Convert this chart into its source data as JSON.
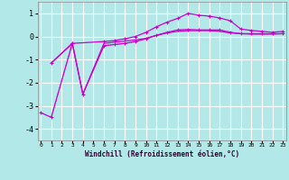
{
  "xlabel": "Windchill (Refroidissement éolien,°C)",
  "bg_color": "#b3e8e8",
  "grid_color": "#ffffff",
  "line_color": "#cc00cc",
  "x_ticks": [
    0,
    1,
    2,
    3,
    4,
    5,
    6,
    7,
    8,
    9,
    10,
    11,
    12,
    13,
    14,
    15,
    16,
    17,
    18,
    19,
    20,
    21,
    22,
    23
  ],
  "y_ticks": [
    -4,
    -3,
    -2,
    -1,
    0,
    1
  ],
  "xlim": [
    -0.3,
    23.3
  ],
  "ylim": [
    -4.5,
    1.5
  ],
  "series_dotted": {
    "x": [
      0,
      1,
      3,
      4,
      6,
      7,
      8,
      9,
      10,
      11,
      12,
      13,
      14,
      15,
      16,
      17,
      18,
      19,
      20,
      21,
      22,
      23
    ],
    "y": [
      -3.3,
      -3.5,
      -0.3,
      -2.5,
      -0.4,
      -0.35,
      -0.3,
      -0.22,
      -0.1,
      0.05,
      0.18,
      0.28,
      0.3,
      0.28,
      0.28,
      0.28,
      0.18,
      0.12,
      0.12,
      0.12,
      0.12,
      0.12
    ]
  },
  "series_main": {
    "x": [
      0,
      1,
      3,
      4,
      6,
      7,
      8,
      9,
      10,
      11,
      12,
      13,
      14,
      15,
      16,
      17,
      18,
      19,
      20,
      21,
      22,
      23
    ],
    "y": [
      -3.3,
      -3.5,
      -0.3,
      -2.5,
      -0.4,
      -0.35,
      -0.3,
      -0.22,
      -0.1,
      0.05,
      0.18,
      0.28,
      0.3,
      0.28,
      0.28,
      0.28,
      0.18,
      0.12,
      0.12,
      0.12,
      0.12,
      0.12
    ]
  },
  "series_arc": {
    "x": [
      1,
      3,
      6,
      7,
      8,
      9,
      10,
      11,
      12,
      13,
      14,
      15,
      16,
      17,
      18,
      19,
      20,
      21,
      22,
      23
    ],
    "y": [
      -1.15,
      -0.3,
      -0.22,
      -0.18,
      -0.1,
      0.0,
      0.18,
      0.42,
      0.62,
      0.78,
      1.0,
      0.92,
      0.88,
      0.8,
      0.68,
      0.32,
      0.26,
      0.22,
      0.18,
      0.22
    ]
  },
  "series_lower": {
    "x": [
      1,
      3,
      4,
      6,
      7,
      8,
      9,
      10,
      11,
      12,
      13,
      14,
      15,
      16,
      17,
      18,
      19,
      20,
      21,
      22,
      23
    ],
    "y": [
      -1.15,
      -0.3,
      -2.5,
      -0.3,
      -0.25,
      -0.2,
      -0.15,
      -0.08,
      0.05,
      0.15,
      0.22,
      0.25,
      0.25,
      0.25,
      0.22,
      0.15,
      0.12,
      0.1,
      0.1,
      0.1,
      0.12
    ]
  }
}
